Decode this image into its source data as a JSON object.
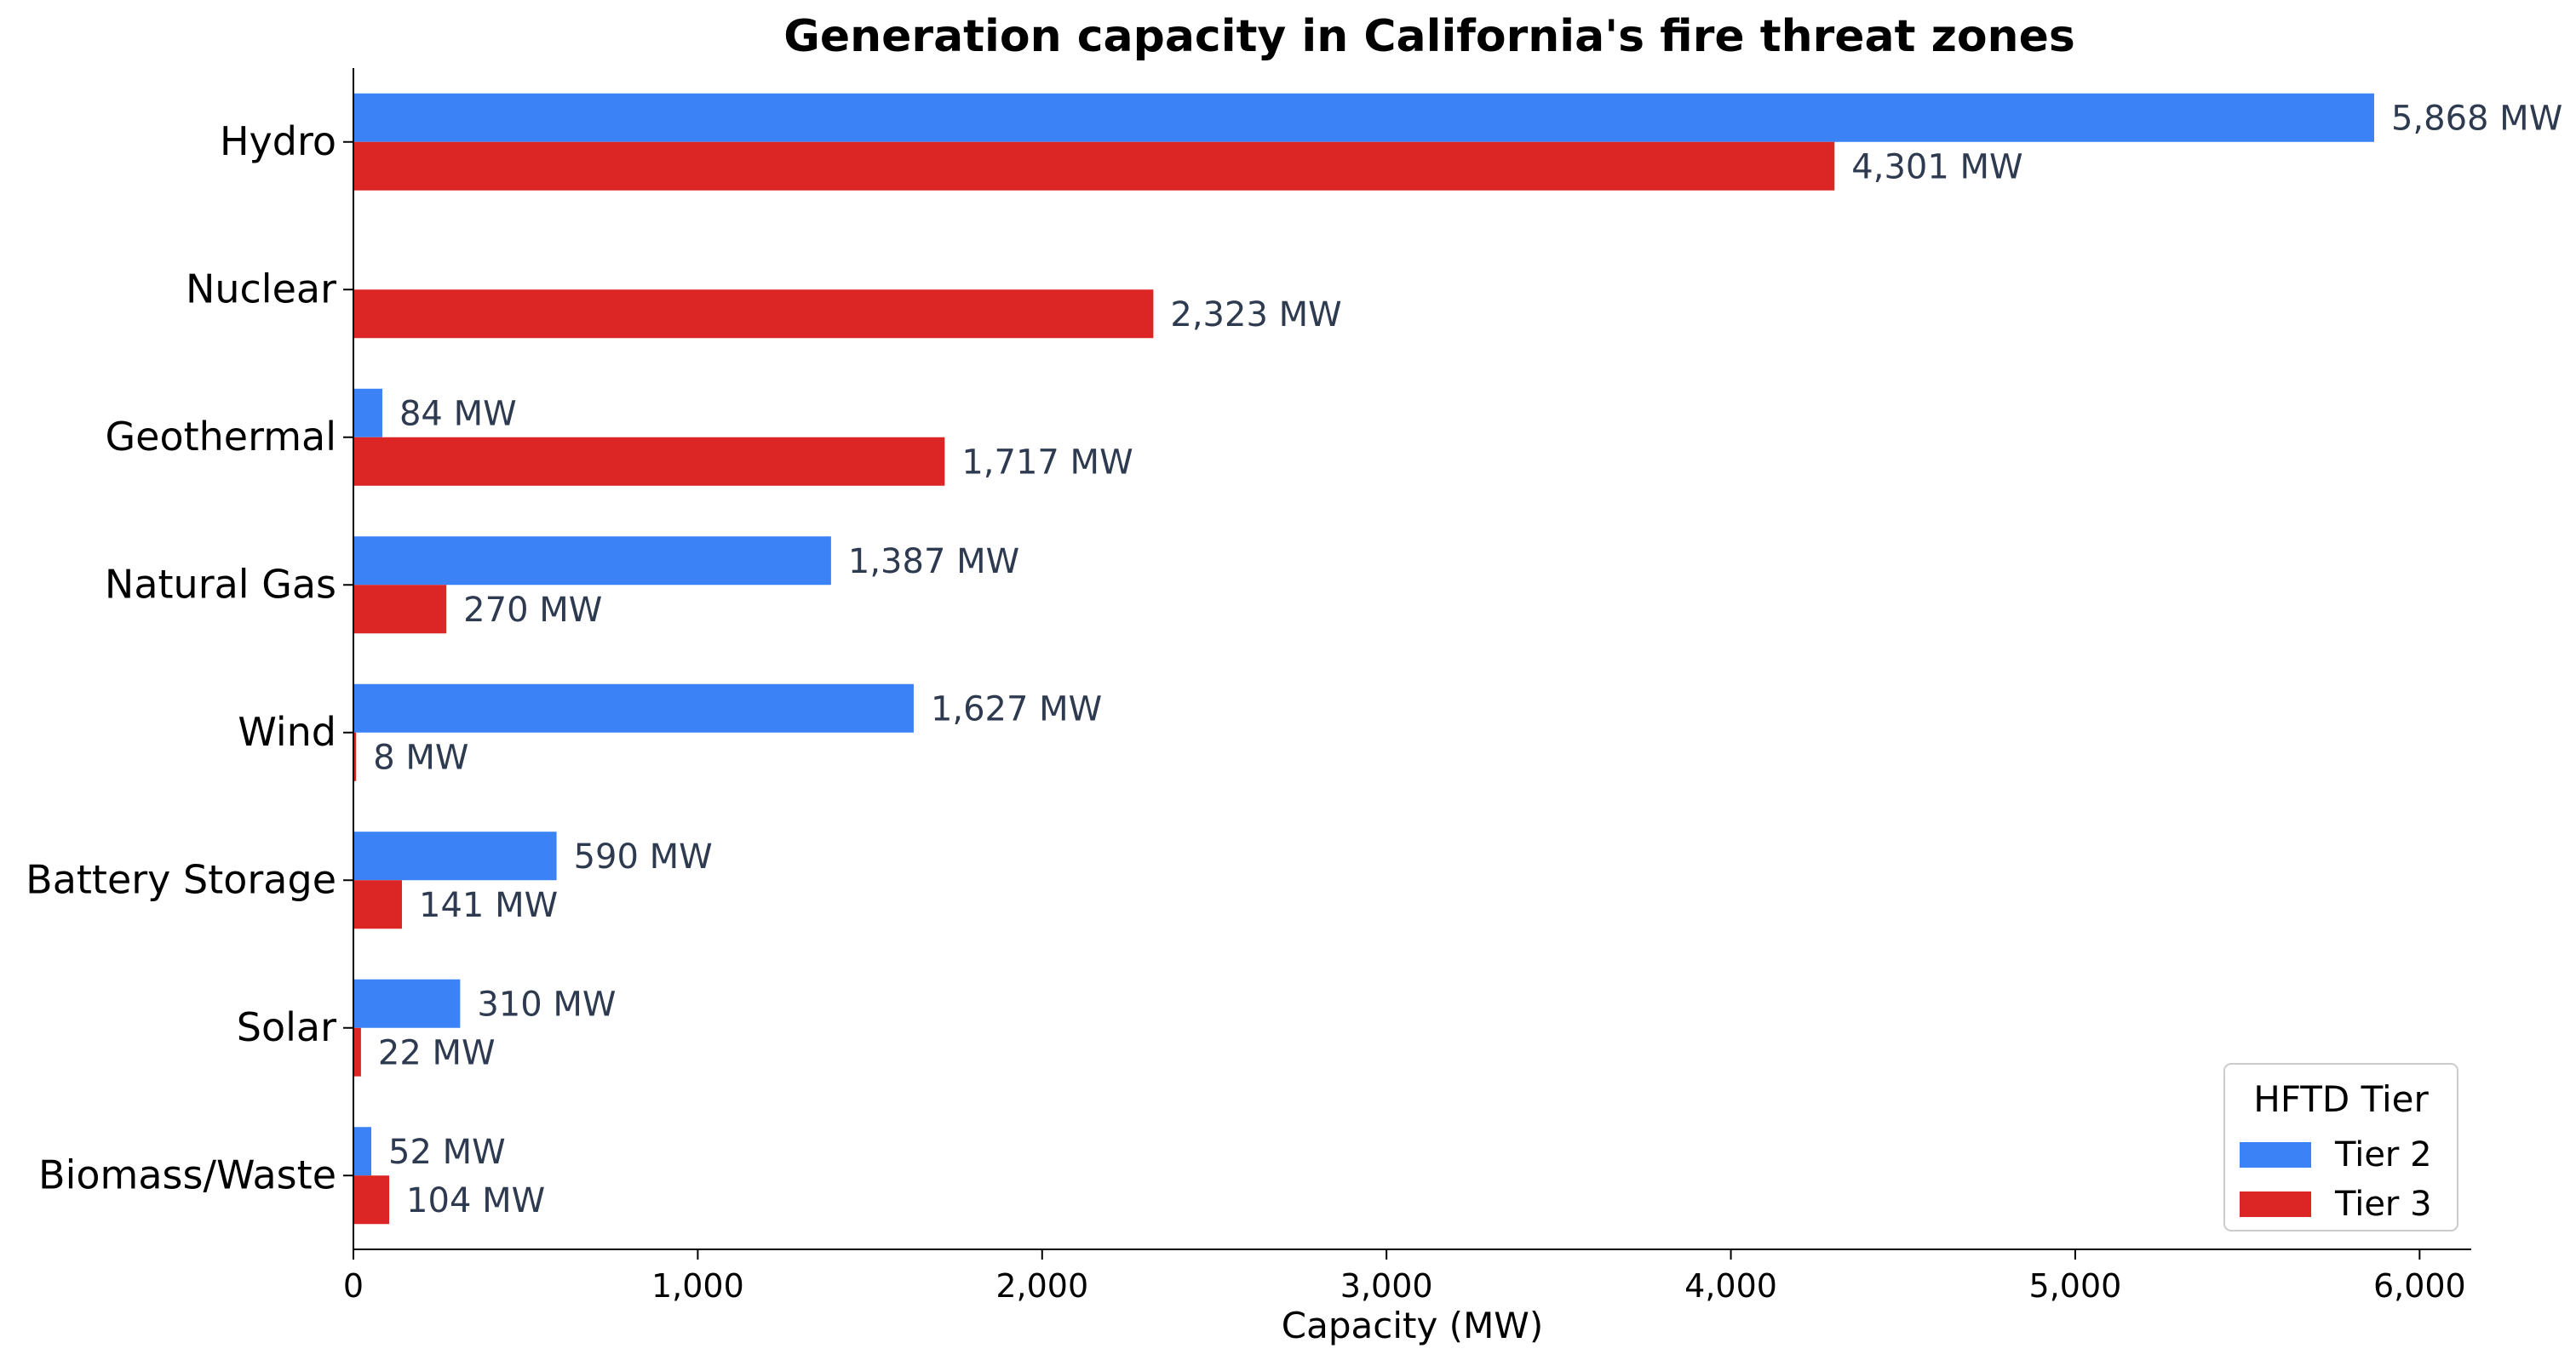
{
  "chart_data": {
    "type": "bar",
    "orientation": "horizontal",
    "title": "Generation capacity in California's fire threat zones",
    "xlabel": "Capacity (MW)",
    "ylabel": "",
    "xlim": [
      0,
      6150
    ],
    "xticks": [
      0,
      1000,
      2000,
      3000,
      4000,
      5000,
      6000
    ],
    "xtick_labels": [
      "0",
      "1,000",
      "2,000",
      "3,000",
      "4,000",
      "5,000",
      "6,000"
    ],
    "categories": [
      "Hydro",
      "Nuclear",
      "Geothermal",
      "Natural Gas",
      "Wind",
      "Battery Storage",
      "Solar",
      "Biomass/Waste"
    ],
    "series": [
      {
        "name": "Tier 2",
        "color": "#3b82f6",
        "values": [
          5868,
          0,
          84,
          1387,
          1627,
          590,
          310,
          52
        ],
        "labels": [
          "5,868 MW",
          "",
          "84 MW",
          "1,387 MW",
          "1,627 MW",
          "590 MW",
          "310 MW",
          "52 MW"
        ]
      },
      {
        "name": "Tier 3",
        "color": "#dc2626",
        "values": [
          4301,
          2323,
          1717,
          270,
          8,
          141,
          22,
          104
        ],
        "labels": [
          "4,301 MW",
          "2,323 MW",
          "1,717 MW",
          "270 MW",
          "8 MW",
          "141 MW",
          "22 MW",
          "104 MW"
        ]
      }
    ],
    "legend": {
      "title": "HFTD Tier",
      "position": "bottom-right"
    },
    "grid": false
  }
}
